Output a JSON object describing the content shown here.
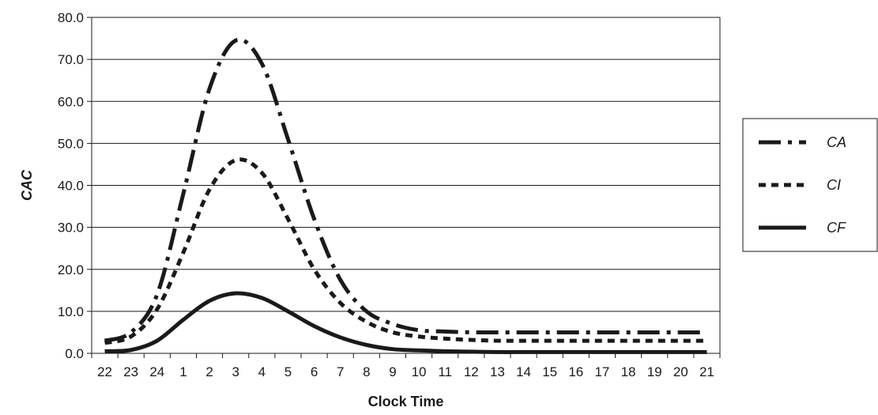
{
  "chart_data": {
    "type": "line",
    "title": "",
    "xlabel": "Clock Time",
    "ylabel": "CAC",
    "ylim": [
      0,
      80
    ],
    "yticks": [
      "0.0",
      "10.0",
      "20.0",
      "30.0",
      "40.0",
      "50.0",
      "60.0",
      "70.0",
      "80.0"
    ],
    "x": [
      "22",
      "23",
      "24",
      "1",
      "2",
      "3",
      "4",
      "5",
      "6",
      "7",
      "8",
      "9",
      "10",
      "11",
      "12",
      "13",
      "14",
      "15",
      "16",
      "17",
      "18",
      "19",
      "20",
      "21"
    ],
    "grid": "horizontal",
    "legend_position": "right",
    "series": [
      {
        "name": "CA",
        "line_style": "dash-dot",
        "color": "#1a1a1a",
        "values": [
          3,
          5,
          14,
          38,
          63,
          74.5,
          69,
          51,
          32,
          17.5,
          10,
          7,
          5.5,
          5.2,
          5,
          5,
          5,
          5,
          5,
          5,
          5,
          5,
          5,
          5
        ]
      },
      {
        "name": "CI",
        "line_style": "dotted",
        "color": "#1a1a1a",
        "values": [
          2.5,
          4,
          10.5,
          24,
          39,
          46,
          43,
          32,
          20,
          12,
          7.5,
          5,
          4,
          3.5,
          3.2,
          3,
          3,
          3,
          3,
          3,
          3,
          3,
          3,
          3
        ]
      },
      {
        "name": "CF",
        "line_style": "solid",
        "color": "#1a1a1a",
        "values": [
          0.5,
          0.8,
          3,
          8,
          12.5,
          14.3,
          13.2,
          10,
          6.5,
          3.8,
          2,
          1,
          0.7,
          0.5,
          0.4,
          0.3,
          0.3,
          0.3,
          0.3,
          0.3,
          0.3,
          0.3,
          0.3,
          0.3
        ]
      }
    ]
  }
}
